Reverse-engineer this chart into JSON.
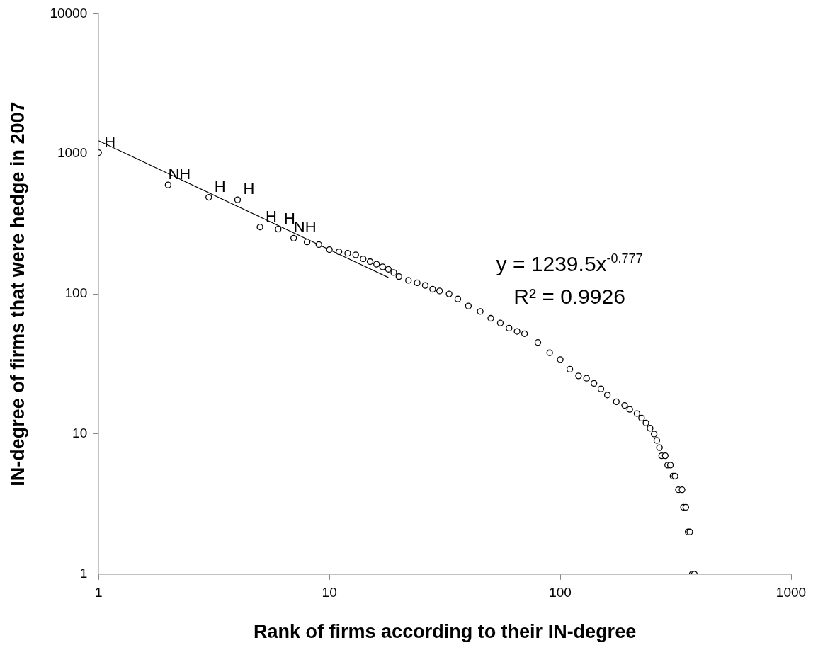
{
  "chart_data": {
    "type": "scatter",
    "xlabel": "Rank of firms according to their IN-degree",
    "ylabel": "IN-degree of firms that were hedge in 2007",
    "log": "xy",
    "grid": false,
    "legend": false,
    "xlim": [
      1,
      1000
    ],
    "xticks": [
      1,
      10,
      100,
      1000
    ],
    "ylim": [
      1,
      10000
    ],
    "yticks": [
      1,
      10,
      100,
      1000,
      10000
    ],
    "series": [
      {
        "color": "#000000",
        "marker": "circle",
        "x": [
          1,
          2,
          3,
          4,
          5,
          6,
          7,
          8,
          9,
          10,
          11,
          12,
          13,
          14,
          15,
          16,
          17,
          18,
          19,
          20,
          22,
          24,
          26,
          28,
          30,
          33,
          36,
          40,
          45,
          50,
          55,
          60,
          65,
          70,
          80,
          90,
          100,
          110,
          120,
          130,
          140,
          150,
          160,
          175,
          190,
          200,
          215,
          225,
          235,
          245,
          255,
          262,
          269,
          275,
          285,
          292,
          300,
          308,
          314,
          325,
          337,
          342,
          350,
          358,
          364,
          373,
          381
        ],
        "values": [
          1020,
          600,
          490,
          470,
          300,
          290,
          250,
          235,
          225,
          207,
          200,
          195,
          190,
          178,
          170,
          163,
          156,
          150,
          142,
          133,
          125,
          120,
          115,
          108,
          105,
          100,
          92,
          82,
          75,
          67,
          62,
          57,
          54,
          52,
          45,
          38,
          34,
          29,
          26,
          25,
          23,
          21,
          19,
          17,
          16,
          15,
          14,
          13,
          12,
          11,
          10,
          9,
          8,
          7,
          7,
          6,
          6,
          5,
          5,
          4,
          4,
          3,
          3,
          2,
          2,
          1,
          1
        ]
      },
      {
        "type": "line",
        "marker": "none",
        "color": "#000000",
        "x": [
          1,
          18
        ],
        "values": [
          1239.5,
          131
        ]
      }
    ],
    "annotations": [
      {
        "text": "H",
        "x": 1,
        "y": 1020
      },
      {
        "text": "NH",
        "x": 2,
        "y": 600
      },
      {
        "text": "H",
        "x": 3,
        "y": 490
      },
      {
        "text": "H",
        "x": 4,
        "y": 470
      },
      {
        "text": "H",
        "x": 5,
        "y": 300
      },
      {
        "text": "H",
        "x": 6,
        "y": 290
      },
      {
        "text": "NH",
        "x": 7,
        "y": 250
      },
      "y = 1239.5x$^{-0.777}$",
      "R² = 0.9926"
    ]
  }
}
